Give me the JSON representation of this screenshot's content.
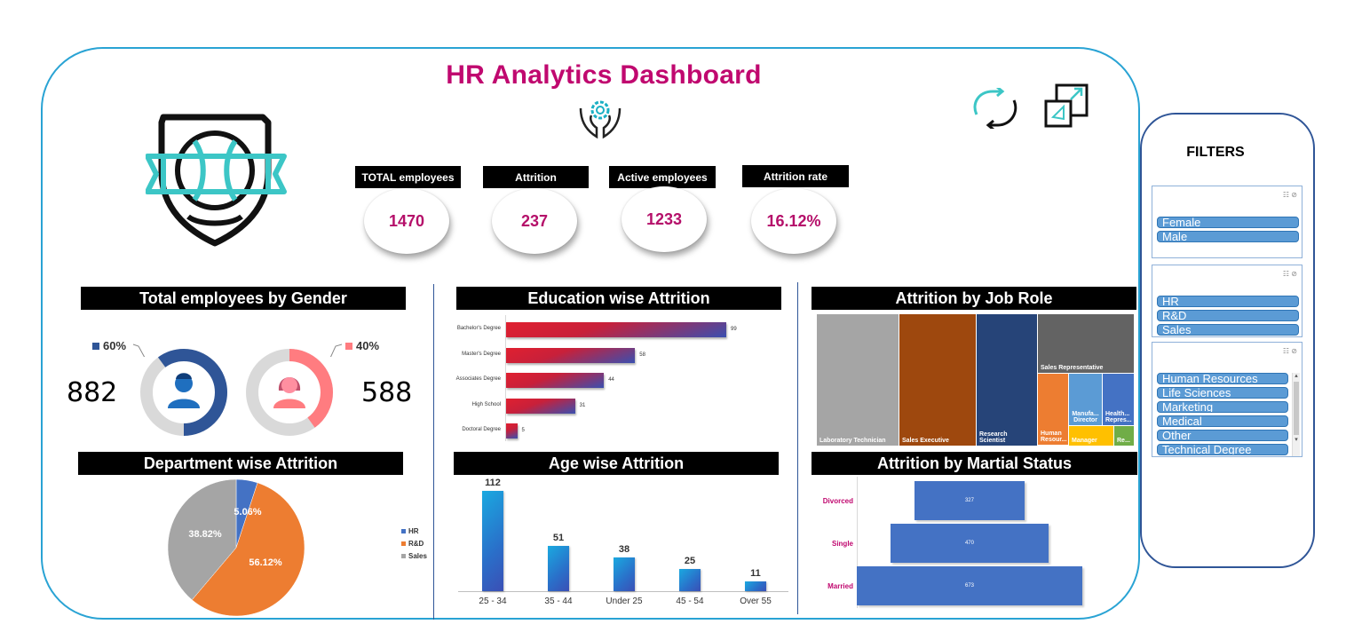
{
  "dashboard": {
    "title": "HR Analytics Dashboard"
  },
  "icons": {
    "logo": "shield-icon",
    "gear_hands": "gear-hands-icon",
    "refresh": "refresh-icon",
    "expand": "expand-icon"
  },
  "kpis": [
    {
      "label": "TOTAL employees",
      "value": "1470"
    },
    {
      "label": "Attrition",
      "value": "237"
    },
    {
      "label": "Active employees",
      "value": "1233"
    },
    {
      "label": "Attrition rate",
      "value": "16.12%"
    }
  ],
  "gender": {
    "title": "Total employees by Gender",
    "male": {
      "percent": "60%",
      "count": "882",
      "fraction": 0.6,
      "color": "#2f5597"
    },
    "female": {
      "percent": "40%",
      "count": "588",
      "fraction": 0.4,
      "color": "#ff7c80"
    }
  },
  "department": {
    "title": "Department wise Attrition",
    "legend": [
      "HR",
      "R&D",
      "Sales"
    ]
  },
  "education": {
    "title": "Education wise Attrition"
  },
  "age": {
    "title": "Age wise Attrition"
  },
  "job_role": {
    "title": "Attrition by Job Role",
    "cells": [
      {
        "label": "Laboratory Technician",
        "color": "#a5a5a5"
      },
      {
        "label": "Sales Executive",
        "color": "#9e480e"
      },
      {
        "label": "Research Scientist",
        "color": "#264478"
      },
      {
        "label": "Sales Representative",
        "color": "#636363"
      },
      {
        "label": "Human Resour...",
        "color": "#ed7d31"
      },
      {
        "label": "Manufa... Director",
        "color": "#5b9bd5"
      },
      {
        "label": "Health... Repres...",
        "color": "#4472c4"
      },
      {
        "label": "Manager",
        "color": "#ffc000"
      },
      {
        "label": "Re...",
        "color": "#70ad47"
      }
    ]
  },
  "marital": {
    "title": "Attrition by Martial Status",
    "rows": [
      {
        "label": "Divorced",
        "value": "327",
        "num": 327
      },
      {
        "label": "Single",
        "value": "470",
        "num": 470
      },
      {
        "label": "Married",
        "value": "673",
        "num": 673
      }
    ]
  },
  "filters": {
    "title": "FILTERS",
    "gender_slicer": [
      "Female",
      "Male"
    ],
    "department_slicer": [
      "HR",
      "R&D",
      "Sales"
    ],
    "education_field_slicer": [
      "Human Resources",
      "Life Sciences",
      "Marketing",
      "Medical",
      "Other",
      "Technical Degree"
    ]
  },
  "chart_data": [
    {
      "type": "pie",
      "title": "Department wise Attrition",
      "categories": [
        "HR",
        "R&D",
        "Sales"
      ],
      "values": [
        5.06,
        56.12,
        38.82
      ],
      "labels": [
        "5.06%",
        "56.12%",
        "38.82%"
      ],
      "colors": [
        "#4472c4",
        "#ed7d31",
        "#a5a5a5"
      ],
      "legend": "right"
    },
    {
      "type": "bar",
      "orientation": "horizontal",
      "title": "Education wise Attrition",
      "categories": [
        "Bachelor's Degree",
        "Master's Degree",
        "Associates Degree",
        "High School",
        "Doctoral Degree"
      ],
      "values": [
        99,
        58,
        44,
        31,
        5
      ],
      "labels": [
        "99",
        "58",
        "44",
        "31",
        "5"
      ]
    },
    {
      "type": "bar",
      "title": "Age wise Attrition",
      "categories": [
        "25 - 34",
        "35 - 44",
        "Under 25",
        "45 - 54",
        "Over 55"
      ],
      "values": [
        112,
        51,
        38,
        25,
        11
      ],
      "labels": [
        "112",
        "51",
        "38",
        "25",
        "11"
      ]
    },
    {
      "type": "bar",
      "orientation": "horizontal",
      "title": "Attrition by Martial Status",
      "categories": [
        "Divorced",
        "Single",
        "Married"
      ],
      "values": [
        327,
        470,
        673
      ],
      "labels": [
        "327",
        "470",
        "673"
      ]
    }
  ]
}
